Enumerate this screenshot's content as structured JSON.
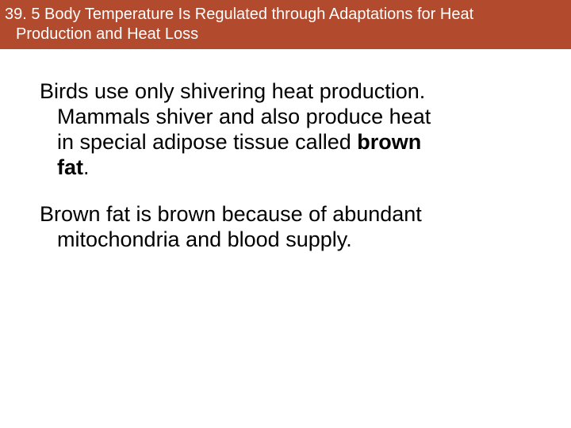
{
  "header": {
    "bg_color": "#b24a2e",
    "text_color": "#ffffff",
    "line1": "39. 5 Body Temperature Is Regulated through Adaptations for Heat",
    "line2": "Production and Heat Loss",
    "font_size": 20
  },
  "body": {
    "font_size": 27,
    "text_color": "#000000",
    "para1": {
      "l1": "Birds use only shivering heat production.",
      "l2": "Mammals shiver and also produce heat",
      "l3": "in special adipose tissue called ",
      "l3_bold": "brown",
      "l4_bold": "fat",
      "l4_rest": "."
    },
    "para2": {
      "l1": "Brown fat is brown because of abundant",
      "l2": "mitochondria and blood supply."
    }
  }
}
